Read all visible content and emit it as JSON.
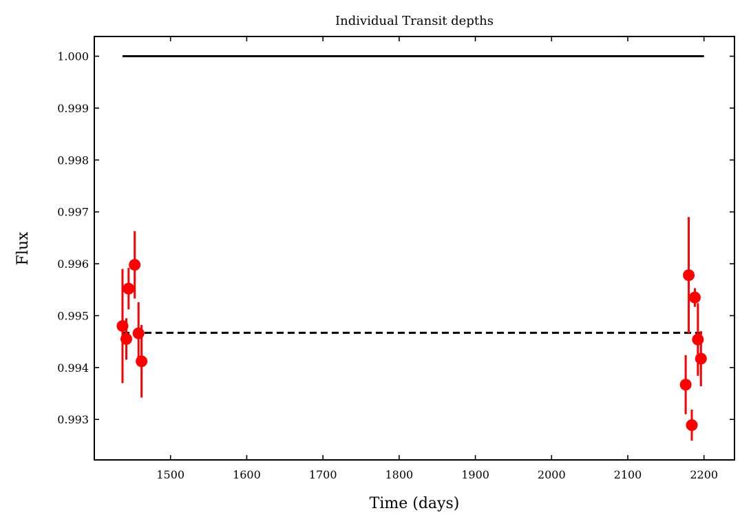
{
  "chart_data": {
    "type": "scatter",
    "title": "Individual Transit depths",
    "xlabel": "Time (days)",
    "ylabel": "Flux",
    "xlim": [
      1400,
      2240
    ],
    "ylim": [
      0.99222,
      1.00038
    ],
    "xticks": [
      1500,
      1600,
      1700,
      1800,
      1900,
      2000,
      2100,
      2200
    ],
    "yticks": [
      0.993,
      0.994,
      0.995,
      0.996,
      0.997,
      0.998,
      0.999,
      1.0
    ],
    "xtick_labels": [
      "1500",
      "1600",
      "1700",
      "1800",
      "1900",
      "2000",
      "2100",
      "2200"
    ],
    "ytick_labels": [
      "0.993",
      "0.994",
      "0.995",
      "0.996",
      "0.997",
      "0.998",
      "0.999",
      "1.000"
    ],
    "grid": false,
    "reference_lines": [
      {
        "y": 1.0,
        "x_range": [
          1437,
          2200
        ],
        "style": "solid",
        "color": "#000000"
      },
      {
        "y": 0.99467,
        "x_range": [
          1437,
          2200
        ],
        "style": "dashed",
        "color": "#000000"
      }
    ],
    "series": [
      {
        "color": "#ff0000",
        "x": [
          1437,
          1442,
          1445,
          1453,
          1458,
          1462,
          2176,
          2180,
          2184,
          2188,
          2192,
          2196
        ],
        "y": [
          0.9948,
          0.99455,
          0.99552,
          0.99598,
          0.99466,
          0.99412,
          0.99367,
          0.99578,
          0.99289,
          0.99535,
          0.99454,
          0.99417
        ],
        "yerr": [
          0.0011,
          0.0004,
          0.0004,
          0.00065,
          0.0006,
          0.0007,
          0.00057,
          0.00112,
          0.0003,
          0.00018,
          0.0007,
          0.00053
        ]
      }
    ]
  }
}
